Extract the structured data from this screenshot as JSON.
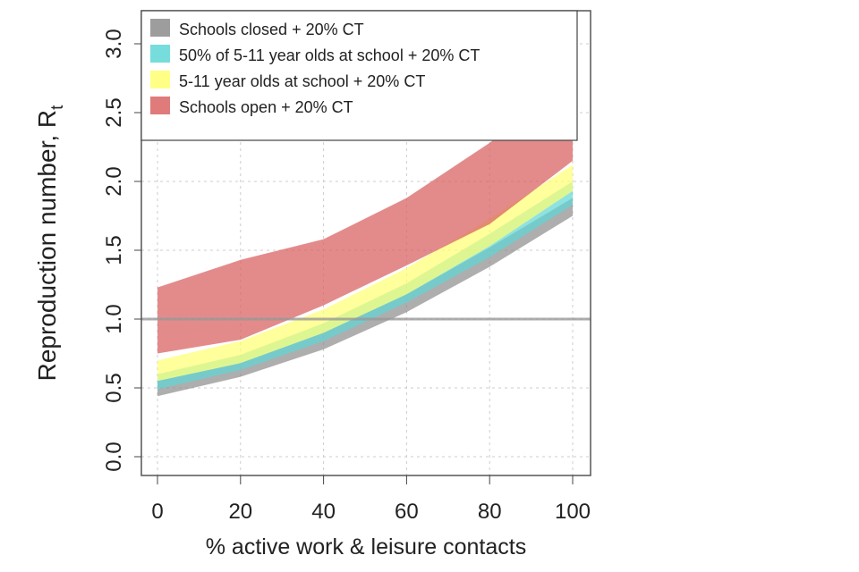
{
  "chart_data": {
    "type": "area",
    "title": "",
    "xlabel": "% active work & leisure contacts",
    "ylabel": "Reproduction number, R",
    "ylabel_subscript": "t",
    "xlim": [
      0,
      100
    ],
    "ylim": [
      0,
      3
    ],
    "xticks": [
      "0",
      "20",
      "40",
      "60",
      "80",
      "100"
    ],
    "yticks": [
      "0.0",
      "0.5",
      "1.0",
      "1.5",
      "2.0",
      "2.5",
      "3.0"
    ],
    "grid": true,
    "reference_line": 1.0,
    "legend_position": "top",
    "x": [
      0,
      20,
      40,
      60,
      80,
      100
    ],
    "series": [
      {
        "name": "Schools closed + 20% CT",
        "color": "#8c8c8c",
        "lower": [
          0.44,
          0.58,
          0.78,
          1.05,
          1.38,
          1.75
        ],
        "upper": [
          0.55,
          0.68,
          0.9,
          1.18,
          1.52,
          1.88
        ]
      },
      {
        "name": "50% of 5-11 year olds at school + 20% CT",
        "color": "#5fd6d6",
        "lower": [
          0.49,
          0.63,
          0.84,
          1.12,
          1.45,
          1.83
        ],
        "upper": [
          0.6,
          0.74,
          0.97,
          1.26,
          1.62,
          2.0
        ]
      },
      {
        "name": "5-11 year olds at school + 20% CT",
        "color": "#ffff70",
        "lower": [
          0.55,
          0.68,
          0.9,
          1.18,
          1.53,
          1.93
        ],
        "upper": [
          0.7,
          0.84,
          1.07,
          1.37,
          1.73,
          2.12
        ]
      },
      {
        "name": "Schools open + 20% CT",
        "color": "#d96464",
        "lower": [
          0.75,
          0.85,
          1.1,
          1.39,
          1.69,
          2.15
        ],
        "upper": [
          1.23,
          1.43,
          1.58,
          1.88,
          2.28,
          2.75
        ]
      }
    ]
  }
}
